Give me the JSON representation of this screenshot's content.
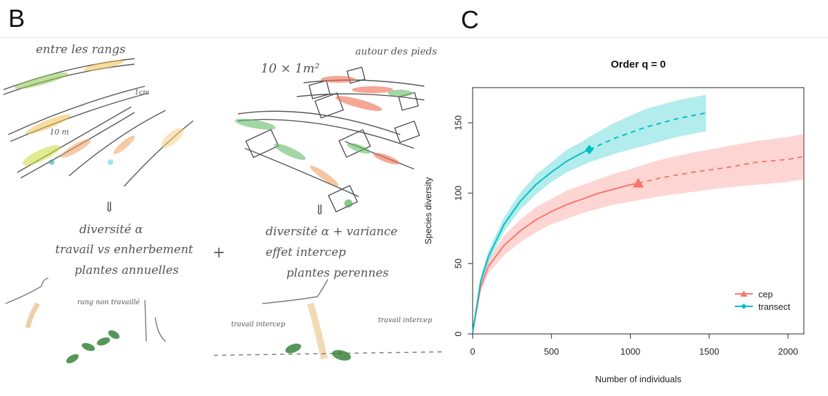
{
  "panels": {
    "left_letter": "B",
    "right_letter": "C"
  },
  "sketch": {
    "label_between_rows": "entre les rangs",
    "label_quadrats": "10 × 1m²",
    "label_around_feet": "autour des pieds",
    "label_1m": "1cm",
    "label_10m": "10 m",
    "arrow_left": "⇓",
    "arrow_right": "⇓",
    "left_text_1": "diversité α",
    "left_text_2": "travail vs enherbement",
    "left_text_3": "plantes annuelles",
    "plus": "+",
    "right_text_1": "diversité α + variance",
    "right_text_2": "effet intercep",
    "right_text_3": "plantes perennes",
    "label_rang": "rang non travaillé",
    "label_travail_left": "travail intercep",
    "label_travail_right": "travail intercep"
  },
  "chart_data": {
    "type": "line",
    "title": "Order q = 0",
    "xlabel": "Number of individuals",
    "ylabel": "Species diversity",
    "xlim": [
      0,
      2100
    ],
    "ylim": [
      0,
      175
    ],
    "xticks": [
      0,
      500,
      1000,
      1500,
      2000
    ],
    "yticks": [
      0,
      50,
      100,
      150
    ],
    "legend_position": "bottom-right",
    "series": [
      {
        "name": "cep",
        "color": "#F8766D",
        "marker": "triangle",
        "observed": {
          "x": 1050,
          "y": 107
        },
        "interpolated": {
          "x": [
            0,
            50,
            100,
            200,
            300,
            400,
            500,
            600,
            700,
            800,
            900,
            1000,
            1050
          ],
          "y": [
            1,
            33,
            48,
            63,
            73,
            81,
            87,
            92,
            96,
            100,
            103,
            106,
            107
          ]
        },
        "extrapolated": {
          "x": [
            1050,
            1200,
            1400,
            1600,
            1800,
            2000,
            2100
          ],
          "y": [
            107,
            111,
            115,
            118,
            122,
            124,
            126
          ]
        },
        "lower": [
          1,
          30,
          43,
          56,
          65,
          72,
          78,
          82,
          86,
          89,
          92,
          94,
          95,
          98,
          101,
          104,
          106,
          108,
          110
        ],
        "upper": [
          1,
          36,
          53,
          70,
          81,
          90,
          96,
          102,
          106,
          110,
          114,
          117,
          119,
          124,
          129,
          133,
          137,
          140,
          142
        ],
        "band_x": [
          0,
          50,
          100,
          200,
          300,
          400,
          500,
          600,
          700,
          800,
          900,
          1000,
          1050,
          1200,
          1400,
          1600,
          1800,
          2000,
          2100
        ]
      },
      {
        "name": "transect",
        "color": "#00BFC4",
        "marker": "diamond",
        "observed": {
          "x": 740,
          "y": 131
        },
        "interpolated": {
          "x": [
            0,
            50,
            100,
            200,
            300,
            400,
            500,
            600,
            700,
            740
          ],
          "y": [
            1,
            37,
            55,
            78,
            94,
            106,
            115,
            123,
            129,
            131
          ]
        },
        "extrapolated": {
          "x": [
            740,
            900,
            1100,
            1300,
            1480
          ],
          "y": [
            131,
            139,
            147,
            153,
            157
          ]
        },
        "lower": [
          1,
          34,
          51,
          73,
          88,
          99,
          108,
          115,
          120,
          122,
          128,
          134,
          140,
          144
        ],
        "upper": [
          1,
          40,
          59,
          83,
          100,
          113,
          122,
          131,
          137,
          140,
          150,
          160,
          166,
          170
        ],
        "band_x": [
          0,
          50,
          100,
          200,
          300,
          400,
          500,
          600,
          700,
          740,
          900,
          1100,
          1300,
          1480
        ]
      }
    ]
  }
}
